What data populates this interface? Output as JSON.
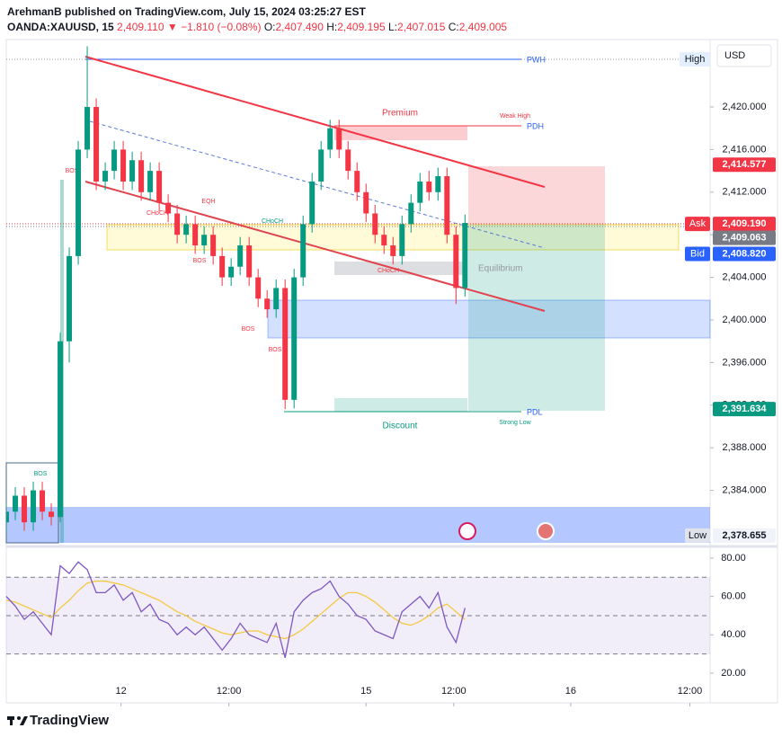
{
  "header": {
    "publisher": "ArehmanB published on TradingView.com, July 15, 2024 03:25:27 EST",
    "symbol": "OANDA:XAUUSD, 15",
    "last": "2,409.110",
    "change": "▼ −1.810 (−0.08%)",
    "ohlc": [
      {
        "key": "O:",
        "value": "2,407.490"
      },
      {
        "key": "H:",
        "value": "2,409.195"
      },
      {
        "key": "L:",
        "value": "2,407.015"
      },
      {
        "key": "C:",
        "value": "2,409.005"
      }
    ]
  },
  "currency": "USD",
  "brand": "TradingView",
  "drawings": {
    "premium": "Premium",
    "weak_high": "Weak High",
    "pdh": "PDH",
    "pwh": "PWH",
    "equilibrium": "Equilibrium",
    "discount": "Discount",
    "pdl": "PDL",
    "strong_low": "Strong Low",
    "structure": [
      "BOS",
      "CHoCH",
      "EQH",
      "CHoCH",
      "BOS",
      "BOS",
      "BOS",
      "CHoCH",
      "BOS"
    ]
  },
  "chart_data": [
    {
      "type": "candlestick",
      "up_color": "#089981",
      "down_color": "#f23645",
      "x": [
        0,
        4,
        8,
        12,
        16,
        20,
        24,
        28,
        32,
        36,
        40,
        44,
        48,
        52,
        56,
        60,
        64,
        68,
        72,
        76,
        80,
        84,
        88,
        92,
        96,
        100,
        104,
        108,
        112,
        116,
        120,
        124,
        128,
        132,
        136,
        140,
        144,
        148,
        152,
        156,
        160,
        164,
        168,
        172,
        176,
        180,
        184,
        188,
        192,
        196,
        200,
        204
      ],
      "open": [
        2381,
        2382,
        2383.5,
        2381,
        2384,
        2382,
        2381.5,
        2398,
        2406,
        2416,
        2420,
        2413,
        2414,
        2416,
        2413,
        2415,
        2412,
        2414,
        2411,
        2410,
        2408,
        2409,
        2407,
        2408,
        2406,
        2404,
        2405,
        2407,
        2404,
        2402,
        2401,
        2403,
        2392.5,
        2404,
        2409,
        2413,
        2416,
        2418,
        2416,
        2414,
        2412,
        2410,
        2408,
        2407,
        2406,
        2409,
        2411,
        2413,
        2412,
        2413.5,
        2408,
        2403
      ],
      "high": [
        2382.8,
        2384.3,
        2384.3,
        2384.8,
        2384.8,
        2382.8,
        2398.8,
        2406.8,
        2416.8,
        2425.7,
        2420.8,
        2414.8,
        2416.8,
        2416.8,
        2415.8,
        2415.8,
        2414.8,
        2414.8,
        2411.8,
        2410.8,
        2409.8,
        2409.8,
        2408.8,
        2408.8,
        2406.8,
        2405.8,
        2407.8,
        2407.8,
        2404.8,
        2402.8,
        2403.8,
        2403.8,
        2404.8,
        2409.8,
        2413.8,
        2416.8,
        2418.8,
        2418.8,
        2416.8,
        2414.8,
        2412.8,
        2410.8,
        2408.8,
        2407.8,
        2409.8,
        2411.8,
        2413.8,
        2414,
        2414.3,
        2414.3,
        2408.8,
        2409.9
      ],
      "low": [
        2380.2,
        2381.2,
        2380.2,
        2380.2,
        2381.2,
        2380.7,
        2381,
        2396,
        2405.2,
        2415.2,
        2412.2,
        2412.2,
        2413.2,
        2412.2,
        2412.2,
        2411.2,
        2411.2,
        2410.2,
        2409.2,
        2407.2,
        2407.2,
        2406.2,
        2406.2,
        2405.2,
        2403.2,
        2403.2,
        2404.2,
        2403.2,
        2401.2,
        2400.2,
        2400.2,
        2391.63,
        2391.7,
        2403.2,
        2408.2,
        2412.2,
        2415.2,
        2415.2,
        2413.2,
        2411.2,
        2409.2,
        2407.2,
        2406.2,
        2405.2,
        2405.2,
        2408.2,
        2410.2,
        2411.2,
        2411.2,
        2407.2,
        2401.5,
        2402.2
      ],
      "close": [
        2382,
        2383.5,
        2381,
        2384,
        2382,
        2381.5,
        2398,
        2406,
        2416,
        2420,
        2413,
        2414,
        2416,
        2413,
        2415,
        2412,
        2414,
        2411,
        2410,
        2408,
        2409,
        2407,
        2408,
        2406,
        2404,
        2405,
        2407,
        2404,
        2402,
        2401,
        2403,
        2392.5,
        2404,
        2409,
        2413,
        2416,
        2418,
        2416,
        2414,
        2412,
        2410,
        2408,
        2407,
        2406,
        2409,
        2411,
        2413,
        2412,
        2413.5,
        2408,
        2403,
        2409.11
      ],
      "xlim": [
        0,
        313
      ],
      "ylim": [
        2379.07,
        2426.33
      ],
      "yticks": [
        {
          "value": 2384,
          "label": "2,384.000"
        },
        {
          "value": 2388,
          "label": "2,388.000"
        },
        {
          "value": 2392,
          "label": "2,392.000"
        },
        {
          "value": 2396,
          "label": "2,396.000"
        },
        {
          "value": 2400,
          "label": "2,400.000"
        },
        {
          "value": 2404,
          "label": "2,404.000"
        },
        {
          "value": 2408,
          "label": "2,408.000"
        },
        {
          "value": 2412,
          "label": "2,412.000"
        },
        {
          "value": 2416,
          "label": "2,416.000"
        },
        {
          "value": 2420,
          "label": "2,420.000"
        }
      ],
      "high_tag": "High",
      "price_labels": [
        {
          "value": 2414.577,
          "label": "2,414.577",
          "color": "#f23645"
        },
        {
          "value": 2409.19,
          "label": "2,409.190",
          "tag": "Ask",
          "color": "#f23645"
        },
        {
          "value": 2409.063,
          "label": "2,409.063",
          "color": "#787b86"
        },
        {
          "value": 2408.82,
          "label": "2,408.820",
          "tag": "Bid",
          "color": "#2962ff"
        },
        {
          "value": 2391.634,
          "label": "2,391.634",
          "color": "#089981"
        },
        {
          "value": 2378.655,
          "label": "2,378.655",
          "tag": "Low",
          "color": "#f0f3fa"
        }
      ]
    },
    {
      "type": "line",
      "x": [
        0,
        4,
        8,
        12,
        16,
        20,
        24,
        28,
        32,
        36,
        40,
        44,
        48,
        52,
        56,
        60,
        64,
        68,
        72,
        76,
        80,
        84,
        88,
        92,
        96,
        100,
        104,
        108,
        112,
        116,
        120,
        124,
        128,
        132,
        136,
        140,
        144,
        148,
        152,
        156,
        160,
        164,
        168,
        172,
        176,
        180,
        184,
        188,
        192,
        196,
        200,
        204
      ],
      "series": [
        {
          "color": "#7e57c2",
          "values": [
            60,
            55,
            48,
            52,
            46,
            40,
            76,
            72,
            78,
            74,
            62,
            62,
            66,
            58,
            62,
            52,
            56,
            48,
            46,
            40,
            44,
            40,
            44,
            38,
            32,
            38,
            46,
            40,
            38,
            36,
            46,
            28,
            52,
            58,
            62,
            64,
            68,
            60,
            56,
            50,
            48,
            42,
            40,
            38,
            52,
            56,
            60,
            54,
            62,
            44,
            36,
            54
          ]
        },
        {
          "color": "#f5c842",
          "values": [
            58,
            57,
            55,
            53,
            51,
            49,
            54,
            58,
            63,
            67,
            68,
            68,
            67,
            66,
            64,
            62,
            60,
            58,
            55,
            52,
            50,
            47,
            45,
            43,
            41,
            40,
            41,
            42,
            42,
            40,
            39,
            38,
            40,
            43,
            47,
            51,
            55,
            59,
            62,
            62,
            60,
            57,
            53,
            49,
            46,
            45,
            47,
            50,
            54,
            56,
            52,
            48
          ]
        }
      ],
      "bands": [
        30,
        50,
        70
      ],
      "xlim": [
        0,
        313
      ],
      "ylim": [
        4.5,
        84.2
      ],
      "yticks": [
        {
          "value": 20,
          "label": "20.00"
        },
        {
          "value": 40,
          "label": "40.00"
        },
        {
          "value": 60,
          "label": "60.00"
        },
        {
          "value": 80,
          "label": "80.00"
        }
      ],
      "xticks": [
        {
          "value": 51,
          "label": "12"
        },
        {
          "value": 99,
          "label": "12:00"
        },
        {
          "value": 160,
          "label": "15"
        },
        {
          "value": 199,
          "label": "12:00"
        },
        {
          "value": 251,
          "label": "16"
        },
        {
          "value": 304,
          "label": "12:00"
        }
      ]
    }
  ]
}
